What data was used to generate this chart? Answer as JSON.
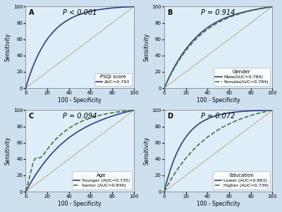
{
  "fig_width": 4.0,
  "fig_height": 3.01,
  "bg_color": "#cde0f0",
  "panel_bg": "#ddeef8",
  "panels": [
    {
      "label": "A",
      "p_text": "P < 0.001",
      "legend_title": "PSQI score",
      "legend_lines": [
        "AUC=0.793"
      ],
      "legend_styles": [
        "solid_blue"
      ],
      "roc_curves": [
        {
          "style": "solid",
          "color": "#2e3d8f",
          "auc": 0.793,
          "shape": "concave_strong"
        }
      ]
    },
    {
      "label": "B",
      "p_text": "P = 0.914",
      "legend_title": "Gender",
      "legend_lines": [
        "Male(AUC=0.784)",
        "Female(AUC=0.784)"
      ],
      "legend_styles": [
        "solid_blue",
        "dashed_green"
      ],
      "roc_curves": [
        {
          "style": "solid",
          "color": "#2e3d8f",
          "auc": 0.784,
          "shape": "concave_medium"
        },
        {
          "style": "dashed",
          "color": "#3a7a3a",
          "auc": 0.784,
          "shape": "concave_medium2"
        }
      ]
    },
    {
      "label": "C",
      "p_text": "P = 0.094",
      "legend_title": "Age",
      "legend_lines": [
        "Younger (AUC=0.735)",
        "Senior (AUC=0.840)"
      ],
      "legend_styles": [
        "solid_blue",
        "dashed_green"
      ],
      "roc_curves": [
        {
          "style": "solid",
          "color": "#2e3d8f",
          "auc": 0.735,
          "shape": "concave_weak"
        },
        {
          "style": "dashed",
          "color": "#3a7a3a",
          "auc": 0.84,
          "shape": "concave_senior"
        }
      ]
    },
    {
      "label": "D",
      "p_text": "P = 0.072",
      "legend_title": "Education",
      "legend_lines": [
        "Lower (AUC=0.883)",
        "Higher (AUC=0.739)"
      ],
      "legend_styles": [
        "solid_blue",
        "dashed_green"
      ],
      "roc_curves": [
        {
          "style": "solid",
          "color": "#2e3d8f",
          "auc": 0.883,
          "shape": "concave_lower"
        },
        {
          "style": "dashed",
          "color": "#3a7a3a",
          "auc": 0.739,
          "shape": "concave_higher"
        }
      ]
    }
  ]
}
